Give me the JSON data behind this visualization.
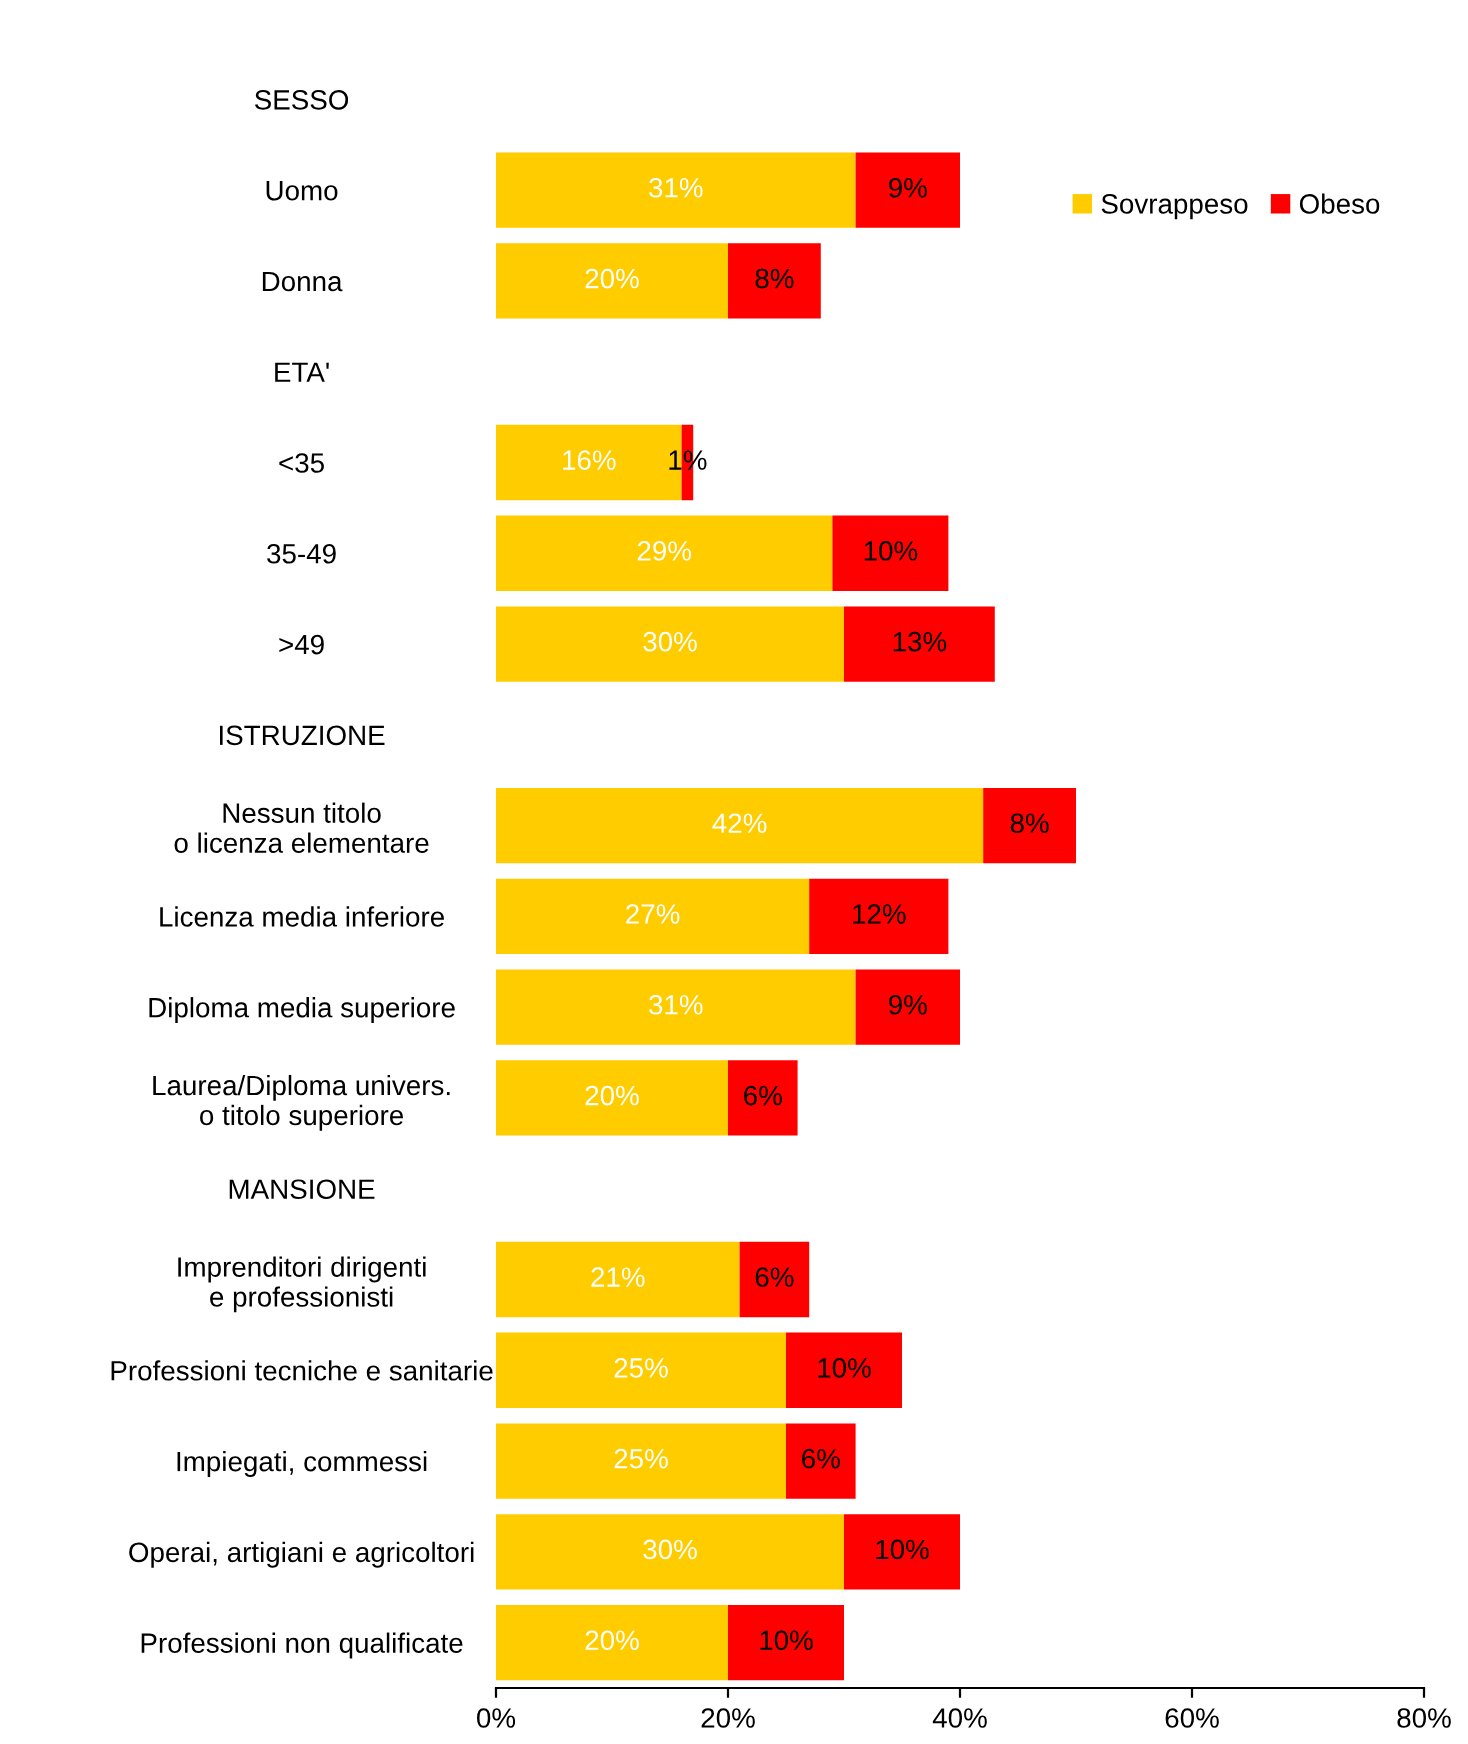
{
  "chart_data": {
    "type": "bar",
    "orientation": "horizontal",
    "stacked": true,
    "categories": [
      "SESSO",
      "Uomo",
      "Donna",
      "ETA'",
      "<35",
      "35-49",
      ">49",
      "ISTRUZIONE",
      "Nessun titolo\no licenza elementare",
      "Licenza media inferiore",
      "Diploma media superiore",
      "Laurea/Diploma univers.\no titolo superiore",
      "MANSIONE",
      "Imprenditori dirigenti\ne professionisti",
      "Professioni tecniche e sanitarie",
      "Impiegati, commessi",
      "Operai, artigiani e agricoltori",
      "Professioni non qualificate"
    ],
    "series": [
      {
        "name": "Sovrappeso",
        "color": "#ffcc00",
        "values": [
          null,
          31,
          20,
          null,
          16,
          29,
          30,
          null,
          42,
          27,
          31,
          20,
          null,
          21,
          25,
          25,
          30,
          20
        ],
        "value_labels": [
          null,
          "31%",
          "20%",
          null,
          "16%",
          "29%",
          "30%",
          null,
          "42%",
          "27%",
          "31%",
          "20%",
          null,
          "21%",
          "25%",
          "25%",
          "30%",
          "20%"
        ]
      },
      {
        "name": "Obeso",
        "color": "#ff0000",
        "values": [
          null,
          9,
          8,
          null,
          1,
          10,
          13,
          null,
          8,
          12,
          9,
          6,
          null,
          6,
          10,
          6,
          10,
          10
        ],
        "value_labels": [
          null,
          "9%",
          "8%",
          null,
          "1%",
          "10%",
          "13%",
          null,
          "8%",
          "12%",
          "9%",
          "6%",
          null,
          "6%",
          "10%",
          "6%",
          "10%",
          "10%"
        ]
      }
    ],
    "xlim": [
      0,
      80
    ],
    "xticks": [
      {
        "value": 0,
        "label": "0%"
      },
      {
        "value": 20,
        "label": "20%"
      },
      {
        "value": 40,
        "label": "40%"
      },
      {
        "value": 60,
        "label": "60%"
      },
      {
        "value": 80,
        "label": "80%"
      }
    ],
    "grid": false,
    "legend": "top right"
  }
}
